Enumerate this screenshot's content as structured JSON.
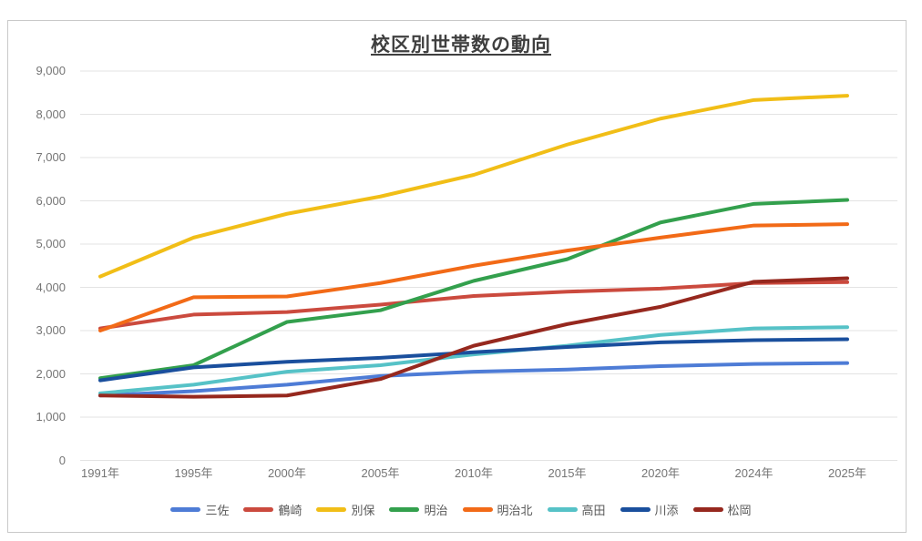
{
  "title": "校区別世帯数の動向",
  "chart_data": {
    "type": "line",
    "title": "校区別世帯数の動向",
    "xlabel": "",
    "ylabel": "",
    "categories": [
      "1991年",
      "1995年",
      "2000年",
      "2005年",
      "2010年",
      "2015年",
      "2020年",
      "2024年",
      "2025年"
    ],
    "series": [
      {
        "name": "三佐",
        "color": "#4E7CD6",
        "values": [
          1500,
          1600,
          1750,
          1950,
          2050,
          2100,
          2180,
          2230,
          2250
        ]
      },
      {
        "name": "鶴崎",
        "color": "#CB4A3E",
        "values": [
          3050,
          3370,
          3430,
          3600,
          3800,
          3900,
          3970,
          4100,
          4120
        ]
      },
      {
        "name": "別保",
        "color": "#F1BE17",
        "values": [
          4250,
          5150,
          5700,
          6100,
          6600,
          7300,
          7900,
          8330,
          8430
        ]
      },
      {
        "name": "明治",
        "color": "#33A04D",
        "values": [
          1900,
          2200,
          3200,
          3470,
          4150,
          4650,
          5500,
          5930,
          6020
        ]
      },
      {
        "name": "明治北",
        "color": "#F26A17",
        "values": [
          3000,
          3770,
          3790,
          4100,
          4500,
          4850,
          5150,
          5430,
          5460
        ]
      },
      {
        "name": "高田",
        "color": "#56C2C7",
        "values": [
          1550,
          1750,
          2050,
          2200,
          2450,
          2650,
          2900,
          3050,
          3080
        ]
      },
      {
        "name": "川添",
        "color": "#1A4F9D",
        "values": [
          1850,
          2150,
          2280,
          2370,
          2500,
          2620,
          2730,
          2780,
          2800
        ]
      },
      {
        "name": "松岡",
        "color": "#96281E",
        "values": [
          1500,
          1470,
          1500,
          1880,
          2650,
          3150,
          3550,
          4130,
          4210
        ]
      }
    ],
    "ylim": [
      0,
      9000
    ],
    "y_tick_step": 1000,
    "y_tick_labels": [
      "0",
      "1,000",
      "2,000",
      "3,000",
      "4,000",
      "5,000",
      "6,000",
      "7,000",
      "8,000",
      "9,000"
    ],
    "grid": true,
    "legend_position": "bottom"
  },
  "colors": {
    "background": "#FFFFFF",
    "gridline": "#E3E3E3",
    "axis_label": "#757575",
    "title_text": "#3F3F3F",
    "legend_label": "#595959",
    "frame_border": "#C9C9C9"
  }
}
